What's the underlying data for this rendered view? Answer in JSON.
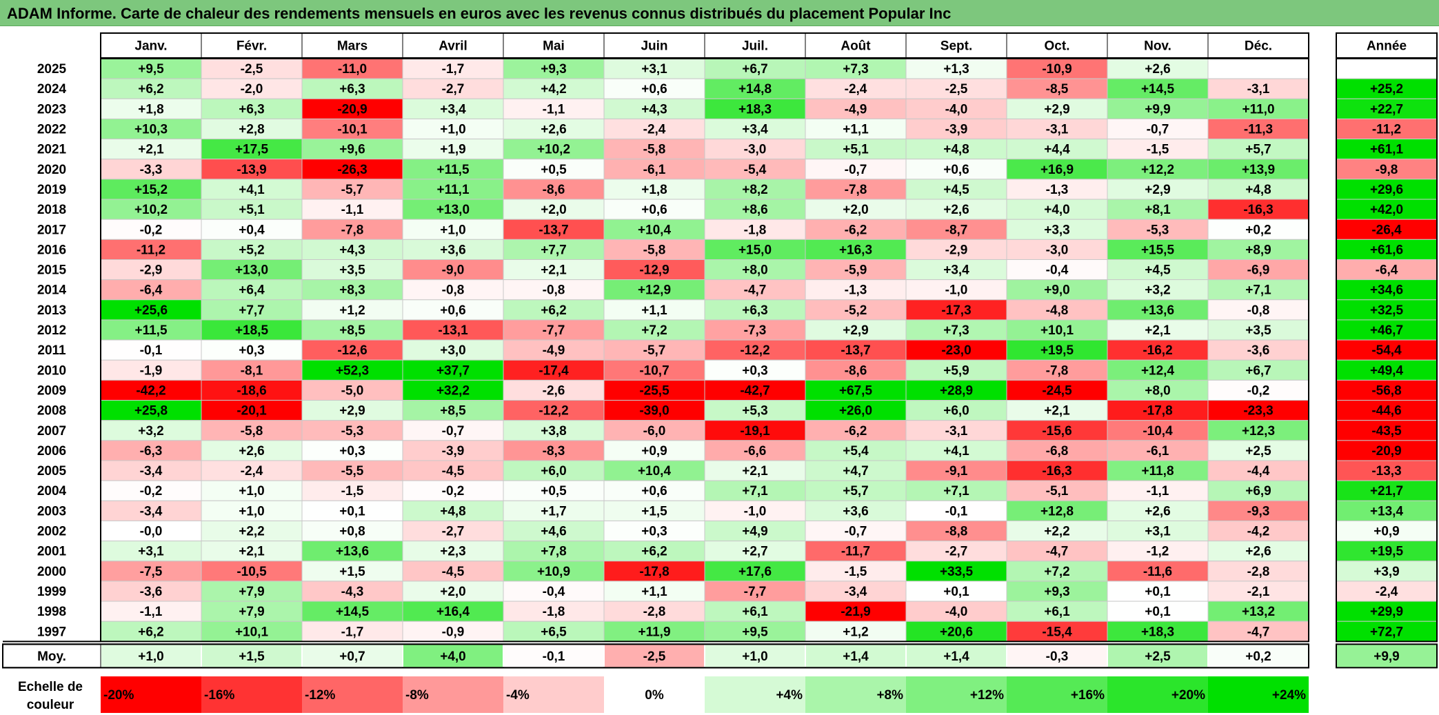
{
  "title": "ADAM Informe. Carte de chaleur des rendements mensuels en euros avec les revenus connus distribués du placement Popular Inc",
  "chart_data": {
    "type": "heatmap",
    "months": [
      "Janv.",
      "Févr.",
      "Mars",
      "Avril",
      "Mai",
      "Juin",
      "Juil.",
      "Août",
      "Sept.",
      "Oct.",
      "Nov.",
      "Déc."
    ],
    "year_header": "Année",
    "rows": [
      {
        "year": "2025",
        "months": [
          "+9,5",
          "-2,5",
          "-11,0",
          "-1,7",
          "+9,3",
          "+3,1",
          "+6,7",
          "+7,3",
          "+1,3",
          "-10,9",
          "+2,6",
          ""
        ],
        "annual": ""
      },
      {
        "year": "2024",
        "months": [
          "+6,2",
          "-2,0",
          "+6,3",
          "-2,7",
          "+4,2",
          "+0,6",
          "+14,8",
          "-2,4",
          "-2,5",
          "-8,5",
          "+14,5",
          "-3,1"
        ],
        "annual": "+25,2"
      },
      {
        "year": "2023",
        "months": [
          "+1,8",
          "+6,3",
          "-20,9",
          "+3,4",
          "-1,1",
          "+4,3",
          "+18,3",
          "-4,9",
          "-4,0",
          "+2,9",
          "+9,9",
          "+11,0"
        ],
        "annual": "+22,7"
      },
      {
        "year": "2022",
        "months": [
          "+10,3",
          "+2,8",
          "-10,1",
          "+1,0",
          "+2,6",
          "-2,4",
          "+3,4",
          "+1,1",
          "-3,9",
          "-3,1",
          "-0,7",
          "-11,3"
        ],
        "annual": "-11,2"
      },
      {
        "year": "2021",
        "months": [
          "+2,1",
          "+17,5",
          "+9,6",
          "+1,9",
          "+10,2",
          "-5,8",
          "-3,0",
          "+5,1",
          "+4,8",
          "+4,4",
          "-1,5",
          "+5,7"
        ],
        "annual": "+61,1"
      },
      {
        "year": "2020",
        "months": [
          "-3,3",
          "-13,9",
          "-26,3",
          "+11,5",
          "+0,5",
          "-6,1",
          "-5,4",
          "-0,7",
          "+0,6",
          "+16,9",
          "+12,2",
          "+13,9"
        ],
        "annual": "-9,8"
      },
      {
        "year": "2019",
        "months": [
          "+15,2",
          "+4,1",
          "-5,7",
          "+11,1",
          "-8,6",
          "+1,8",
          "+8,2",
          "-7,8",
          "+4,5",
          "-1,3",
          "+2,9",
          "+4,8"
        ],
        "annual": "+29,6"
      },
      {
        "year": "2018",
        "months": [
          "+10,2",
          "+5,1",
          "-1,1",
          "+13,0",
          "+2,0",
          "+0,6",
          "+8,6",
          "+2,0",
          "+2,6",
          "+4,0",
          "+8,1",
          "-16,3"
        ],
        "annual": "+42,0"
      },
      {
        "year": "2017",
        "months": [
          "-0,2",
          "+0,4",
          "-7,8",
          "+1,0",
          "-13,7",
          "+10,4",
          "-1,8",
          "-6,2",
          "-8,7",
          "+3,3",
          "-5,3",
          "+0,2"
        ],
        "annual": "-26,4"
      },
      {
        "year": "2016",
        "months": [
          "-11,2",
          "+5,2",
          "+4,3",
          "+3,6",
          "+7,7",
          "-5,8",
          "+15,0",
          "+16,3",
          "-2,9",
          "-3,0",
          "+15,5",
          "+8,9"
        ],
        "annual": "+61,6"
      },
      {
        "year": "2015",
        "months": [
          "-2,9",
          "+13,0",
          "+3,5",
          "-9,0",
          "+2,1",
          "-12,9",
          "+8,0",
          "-5,9",
          "+3,4",
          "-0,4",
          "+4,5",
          "-6,9"
        ],
        "annual": "-6,4"
      },
      {
        "year": "2014",
        "months": [
          "-6,4",
          "+6,4",
          "+8,3",
          "-0,8",
          "-0,8",
          "+12,9",
          "-4,7",
          "-1,3",
          "-1,0",
          "+9,0",
          "+3,2",
          "+7,1"
        ],
        "annual": "+34,6"
      },
      {
        "year": "2013",
        "months": [
          "+25,6",
          "+7,7",
          "+1,2",
          "+0,6",
          "+6,2",
          "+1,1",
          "+6,3",
          "-5,2",
          "-17,3",
          "-4,8",
          "+13,6",
          "-0,8"
        ],
        "annual": "+32,5"
      },
      {
        "year": "2012",
        "months": [
          "+11,5",
          "+18,5",
          "+8,5",
          "-13,1",
          "-7,7",
          "+7,2",
          "-7,3",
          "+2,9",
          "+7,3",
          "+10,1",
          "+2,1",
          "+3,5"
        ],
        "annual": "+46,7"
      },
      {
        "year": "2011",
        "months": [
          "-0,1",
          "+0,3",
          "-12,6",
          "+3,0",
          "-4,9",
          "-5,7",
          "-12,2",
          "-13,7",
          "-23,0",
          "+19,5",
          "-16,2",
          "-3,6"
        ],
        "annual": "-54,4"
      },
      {
        "year": "2010",
        "months": [
          "-1,9",
          "-8,1",
          "+52,3",
          "+37,7",
          "-17,4",
          "-10,7",
          "+0,3",
          "-8,6",
          "+5,9",
          "-7,8",
          "+12,4",
          "+6,7"
        ],
        "annual": "+49,4"
      },
      {
        "year": "2009",
        "months": [
          "-42,2",
          "-18,6",
          "-5,0",
          "+32,2",
          "-2,6",
          "-25,5",
          "-42,7",
          "+67,5",
          "+28,9",
          "-24,5",
          "+8,0",
          "-0,2"
        ],
        "annual": "-56,8"
      },
      {
        "year": "2008",
        "months": [
          "+25,8",
          "-20,1",
          "+2,9",
          "+8,5",
          "-12,2",
          "-39,0",
          "+5,3",
          "+26,0",
          "+6,0",
          "+2,1",
          "-17,8",
          "-23,3"
        ],
        "annual": "-44,6"
      },
      {
        "year": "2007",
        "months": [
          "+3,2",
          "-5,8",
          "-5,3",
          "-0,7",
          "+3,8",
          "-6,0",
          "-19,1",
          "-6,2",
          "-3,1",
          "-15,6",
          "-10,4",
          "+12,3"
        ],
        "annual": "-43,5"
      },
      {
        "year": "2006",
        "months": [
          "-6,3",
          "+2,6",
          "+0,3",
          "-3,9",
          "-8,3",
          "+0,9",
          "-6,6",
          "+5,4",
          "+4,1",
          "-6,8",
          "-6,1",
          "+2,5"
        ],
        "annual": "-20,9"
      },
      {
        "year": "2005",
        "months": [
          "-3,4",
          "-2,4",
          "-5,5",
          "-4,5",
          "+6,0",
          "+10,4",
          "+2,1",
          "+4,7",
          "-9,1",
          "-16,3",
          "+11,8",
          "-4,4"
        ],
        "annual": "-13,3"
      },
      {
        "year": "2004",
        "months": [
          "-0,2",
          "+1,0",
          "-1,5",
          "-0,2",
          "+0,5",
          "+0,6",
          "+7,1",
          "+5,7",
          "+7,1",
          "-5,1",
          "-1,1",
          "+6,9"
        ],
        "annual": "+21,7"
      },
      {
        "year": "2003",
        "months": [
          "-3,4",
          "+1,0",
          "+0,1",
          "+4,8",
          "+1,7",
          "+1,5",
          "-1,0",
          "+3,6",
          "-0,1",
          "+12,8",
          "+2,6",
          "-9,3"
        ],
        "annual": "+13,4"
      },
      {
        "year": "2002",
        "months": [
          "-0,0",
          "+2,2",
          "+0,8",
          "-2,7",
          "+4,6",
          "+0,3",
          "+4,9",
          "-0,7",
          "-8,8",
          "+2,2",
          "+3,1",
          "-4,2"
        ],
        "annual": "+0,9"
      },
      {
        "year": "2001",
        "months": [
          "+3,1",
          "+2,1",
          "+13,6",
          "+2,3",
          "+7,8",
          "+6,2",
          "+2,7",
          "-11,7",
          "-2,7",
          "-4,7",
          "-1,2",
          "+2,6"
        ],
        "annual": "+19,5"
      },
      {
        "year": "2000",
        "months": [
          "-7,5",
          "-10,5",
          "+1,5",
          "-4,5",
          "+10,9",
          "-17,8",
          "+17,6",
          "-1,5",
          "+33,5",
          "+7,2",
          "-11,6",
          "-2,8"
        ],
        "annual": "+3,9"
      },
      {
        "year": "1999",
        "months": [
          "-3,6",
          "+7,9",
          "-4,3",
          "+2,0",
          "-0,4",
          "+1,1",
          "-7,7",
          "-3,4",
          "+0,1",
          "+9,3",
          "+0,1",
          "-2,1"
        ],
        "annual": "-2,4"
      },
      {
        "year": "1998",
        "months": [
          "-1,1",
          "+7,9",
          "+14,5",
          "+16,4",
          "-1,8",
          "-2,8",
          "+6,1",
          "-21,9",
          "-4,0",
          "+6,1",
          "+0,1",
          "+13,2"
        ],
        "annual": "+29,9"
      },
      {
        "year": "1997",
        "months": [
          "+6,2",
          "+10,1",
          "-1,7",
          "-0,9",
          "+6,5",
          "+11,9",
          "+9,5",
          "+1,2",
          "+20,6",
          "-15,4",
          "+18,3",
          "-4,7"
        ],
        "annual": "+72,7"
      }
    ],
    "average": {
      "label": "Moy.",
      "months": [
        "+1,0",
        "+1,5",
        "+0,7",
        "+4,0",
        "-0,1",
        "-2,5",
        "+1,0",
        "+1,4",
        "+1,4",
        "-0,3",
        "+2,5",
        "+0,2"
      ],
      "annual": "+9,9"
    },
    "scale": {
      "label_line1": "Echelle de",
      "label_line2": "couleur",
      "stops": [
        "-20%",
        "-16%",
        "-12%",
        "-8%",
        "-4%",
        "0%",
        "+4%",
        "+8%",
        "+12%",
        "+16%",
        "+20%",
        "+24%"
      ]
    },
    "colors": {
      "positive_max": "#00e000",
      "negative_max": "#ff0000",
      "neutral": "#ffffff",
      "title_bar": "#7dc77d"
    }
  }
}
